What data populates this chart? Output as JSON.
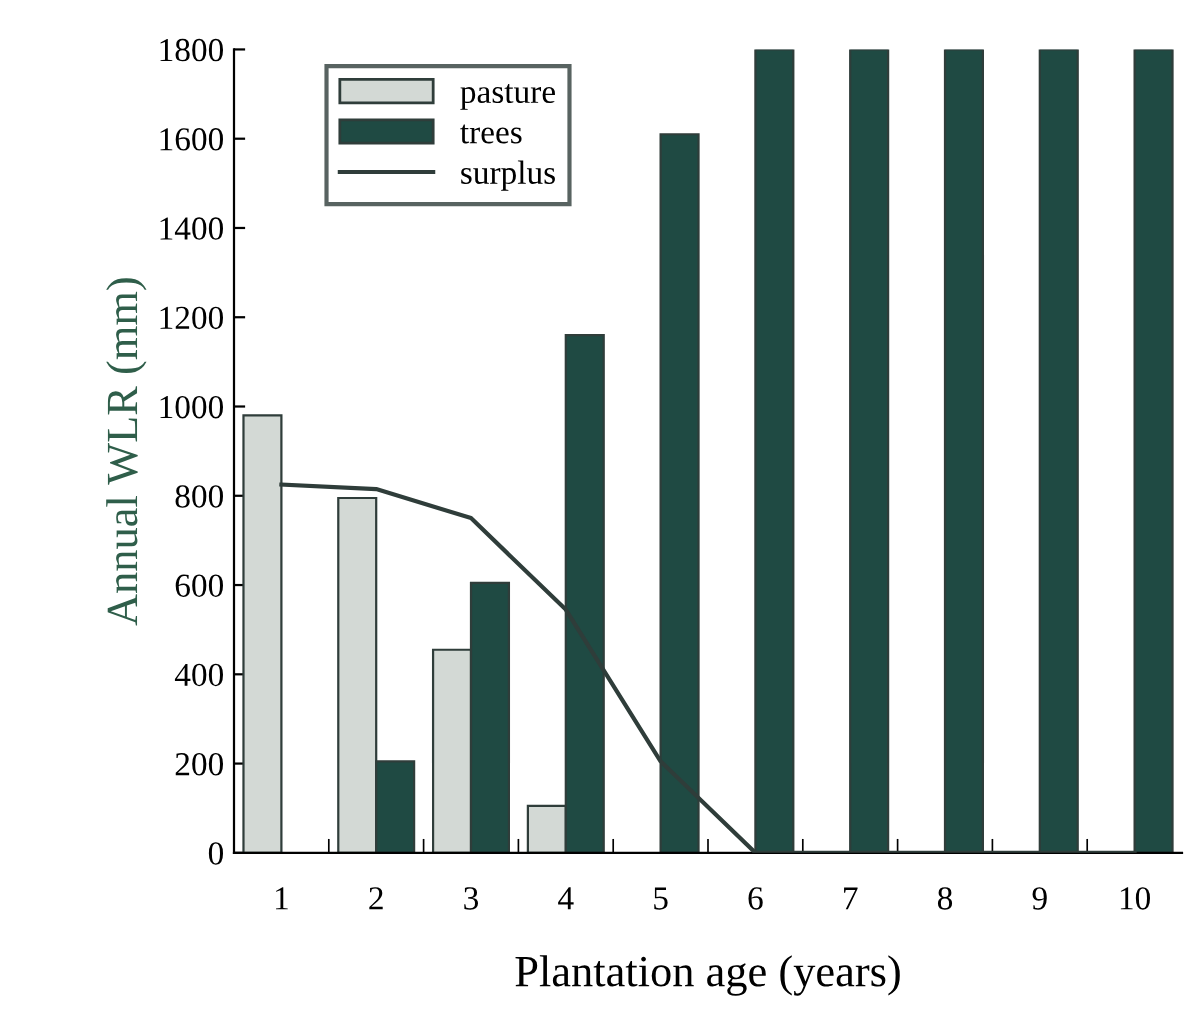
{
  "chart_data": {
    "type": "bar",
    "xlabel": "Plantation age (years)",
    "ylabel": "Annual WLR (mm)",
    "categories": [
      "1",
      "2",
      "3",
      "4",
      "5",
      "6",
      "7",
      "8",
      "9",
      "10"
    ],
    "series": [
      {
        "name": "pasture",
        "color": "#d3d9d5",
        "values": [
          980,
          795,
          455,
          105,
          null,
          null,
          null,
          null,
          null,
          null
        ]
      },
      {
        "name": "trees",
        "color": "#1f4a43",
        "values": [
          null,
          205,
          605,
          1160,
          1610,
          1800,
          1800,
          1800,
          1800,
          1800
        ]
      },
      {
        "name": "surplus",
        "type": "line",
        "color": "#2f3d3a",
        "values": [
          825,
          815,
          750,
          545,
          205,
          0,
          0,
          0,
          0,
          0
        ]
      }
    ],
    "ylim": [
      0,
      1800
    ],
    "yticks": [
      0,
      200,
      400,
      600,
      800,
      1000,
      1200,
      1400,
      1600,
      1800
    ],
    "grid": false,
    "legend": "top left"
  }
}
